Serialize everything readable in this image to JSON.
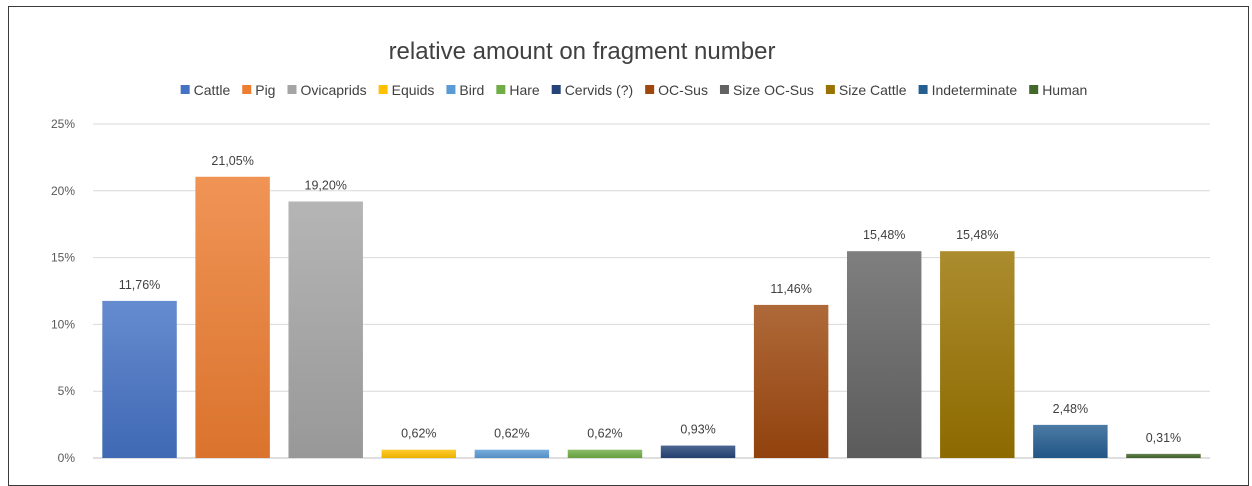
{
  "chart_data": {
    "type": "bar",
    "title": "relative amount on fragment number",
    "xlabel": "",
    "ylabel": "",
    "ylim": [
      0,
      25
    ],
    "y_ticks": [
      "0%",
      "5%",
      "10%",
      "15%",
      "20%",
      "25%"
    ],
    "grid": true,
    "legend_position": "top",
    "categories": [
      "Cattle",
      "Pig",
      "Ovicaprids",
      "Equids",
      "Bird",
      "Hare",
      "Cervids (?)",
      "OC-Sus",
      "Size OC-Sus",
      "Size Cattle",
      "Indeterminate",
      "Human"
    ],
    "values": [
      11.76,
      21.05,
      19.2,
      0.62,
      0.62,
      0.62,
      0.93,
      11.46,
      15.48,
      15.48,
      2.48,
      0.31
    ],
    "data_labels": [
      "11,76%",
      "21,05%",
      "19,20%",
      "0,62%",
      "0,62%",
      "0,62%",
      "0,93%",
      "11,46%",
      "15,48%",
      "15,48%",
      "2,48%",
      "0,31%"
    ],
    "colors": [
      "#4472C4",
      "#ED7D31",
      "#A5A5A5",
      "#FFC000",
      "#5B9BD5",
      "#70AD47",
      "#264478",
      "#9E480E",
      "#636363",
      "#997300",
      "#255E91",
      "#43682B"
    ]
  }
}
